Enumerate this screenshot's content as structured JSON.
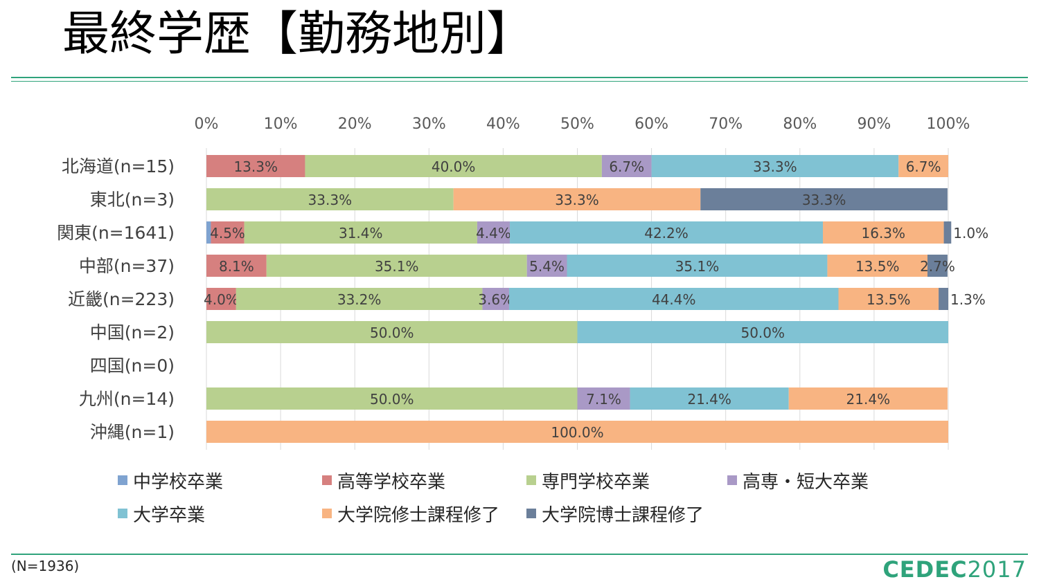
{
  "slide": {
    "title": "最終学歴【勤務地別】",
    "note": "(N=1936)",
    "logo_text": "CEDEC",
    "logo_year": "2017"
  },
  "colors": {
    "accent": "#2fa37b",
    "grid": "#d9d9d9"
  },
  "chart_data": {
    "type": "bar",
    "orientation": "horizontal",
    "stacked": true,
    "percent": true,
    "xlim": [
      0,
      100
    ],
    "x_ticks": [
      "0%",
      "10%",
      "20%",
      "30%",
      "40%",
      "50%",
      "60%",
      "70%",
      "80%",
      "90%",
      "100%"
    ],
    "x_axis_position": "top",
    "grid": true,
    "legend_position": "bottom",
    "categories": [
      "北海道(n=15)",
      "東北(n=3)",
      "関東(n=1641)",
      "中部(n=37)",
      "近畿(n=223)",
      "中国(n=2)",
      "四国(n=0)",
      "九州(n=14)",
      "沖縄(n=1)"
    ],
    "series": [
      {
        "name": "中学校卒業",
        "color": "#7fa3d0",
        "values": [
          0,
          0,
          0.6,
          0,
          0,
          0,
          0,
          0,
          0
        ]
      },
      {
        "name": "高等学校卒業",
        "color": "#d6807f",
        "values": [
          13.3,
          0,
          4.5,
          8.1,
          4.0,
          0,
          0,
          0,
          0
        ]
      },
      {
        "name": "専門学校卒業",
        "color": "#b8d08f",
        "values": [
          40.0,
          33.3,
          31.4,
          35.1,
          33.2,
          50.0,
          0,
          50.0,
          0
        ]
      },
      {
        "name": "高専・短大卒業",
        "color": "#a999c6",
        "values": [
          6.7,
          0,
          4.4,
          5.4,
          3.6,
          0,
          0,
          7.1,
          0
        ]
      },
      {
        "name": "大学卒業",
        "color": "#80c2d3",
        "values": [
          33.3,
          0,
          42.2,
          35.1,
          44.4,
          50.0,
          0,
          21.4,
          0
        ]
      },
      {
        "name": "大学院修士課程修了",
        "color": "#f8b482",
        "values": [
          6.7,
          33.3,
          16.3,
          13.5,
          13.5,
          0,
          0,
          21.4,
          100.0
        ]
      },
      {
        "name": "大学院博士課程修了",
        "color": "#6b7f9a",
        "values": [
          0,
          33.3,
          1.0,
          2.7,
          1.3,
          0,
          0,
          0,
          0
        ]
      }
    ],
    "data_labels": [
      [
        "",
        "13.3%",
        "40.0%",
        "6.7%",
        "33.3%",
        "6.7%",
        ""
      ],
      [
        "",
        "",
        "33.3%",
        "",
        "",
        "33.3%",
        "33.3%"
      ],
      [
        "",
        "4.5%",
        "31.4%",
        "4.4%",
        "42.2%",
        "16.3%",
        "1.0%"
      ],
      [
        "",
        "8.1%",
        "35.1%",
        "5.4%",
        "35.1%",
        "13.5%",
        "2.7%"
      ],
      [
        "",
        "4.0%",
        "33.2%",
        "3.6%",
        "44.4%",
        "13.5%",
        "1.3%"
      ],
      [
        "",
        "",
        "50.0%",
        "",
        "50.0%",
        "",
        ""
      ],
      [
        "",
        "",
        "",
        "",
        "",
        "",
        ""
      ],
      [
        "",
        "",
        "50.0%",
        "7.1%",
        "21.4%",
        "21.4%",
        ""
      ],
      [
        "",
        "",
        "",
        "",
        "",
        "100.0%",
        ""
      ]
    ]
  }
}
